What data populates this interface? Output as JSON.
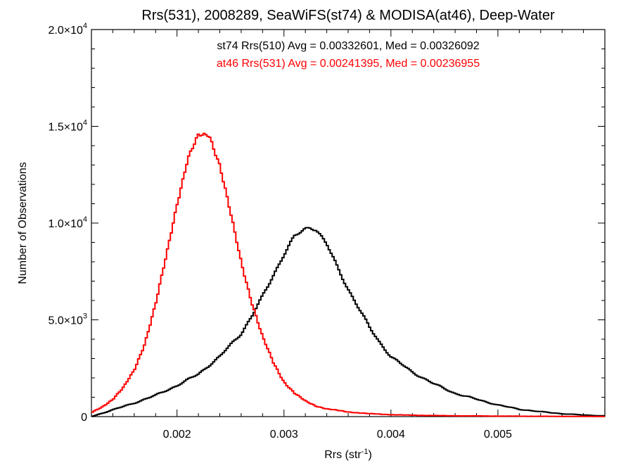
{
  "chart_data": {
    "type": "line",
    "title": "Rrs(531), 2008289, SeaWiFS(st74) & MODISA(at46), Deep-Water",
    "xlabel": "Rrs (str",
    "xlabel_sup": "-1",
    "xlabel_close": ")",
    "ylabel": "Number of Observations",
    "xlim": [
      0.0012,
      0.006
    ],
    "ylim": [
      0,
      20000
    ],
    "x_ticks": [
      {
        "value": 0.002,
        "label": "0.002"
      },
      {
        "value": 0.003,
        "label": "0.003"
      },
      {
        "value": 0.004,
        "label": "0.004"
      },
      {
        "value": 0.005,
        "label": "0.005"
      }
    ],
    "y_ticks": [
      {
        "value": 0,
        "label": "0",
        "sup": ""
      },
      {
        "value": 5000,
        "label": "5.0×10",
        "sup": "3"
      },
      {
        "value": 10000,
        "label": "1.0×10",
        "sup": "4"
      },
      {
        "value": 15000,
        "label": "1.5×10",
        "sup": "4"
      },
      {
        "value": 20000,
        "label": "2.0×10",
        "sup": "4"
      }
    ],
    "grid": false,
    "series": [
      {
        "name": "st74 Rrs(510) Avg = 0.00332601, Med = 0.00326092",
        "color": "#000000",
        "x": [
          0.0012,
          0.0014,
          0.0016,
          0.0018,
          0.002,
          0.0022,
          0.0024,
          0.0026,
          0.0027,
          0.0028,
          0.0029,
          0.003,
          0.0031,
          0.0032,
          0.00325,
          0.0033,
          0.0034,
          0.0035,
          0.0036,
          0.0037,
          0.0038,
          0.0039,
          0.004,
          0.0042,
          0.0044,
          0.0046,
          0.0048,
          0.005,
          0.0052,
          0.0054,
          0.0056,
          0.0058,
          0.006
        ],
        "y": [
          0,
          350,
          700,
          1100,
          1600,
          2200,
          3100,
          4300,
          5200,
          6200,
          7300,
          8400,
          9300,
          9700,
          9800,
          9700,
          8900,
          7700,
          6600,
          5600,
          4600,
          3800,
          3100,
          2300,
          1700,
          1200,
          900,
          600,
          380,
          250,
          150,
          80,
          40
        ]
      },
      {
        "name": "at46 Rrs(531) Avg = 0.00241395, Med = 0.00236955",
        "color": "#ff0000",
        "x": [
          0.0012,
          0.0013,
          0.0014,
          0.0015,
          0.0016,
          0.0017,
          0.0018,
          0.0019,
          0.002,
          0.0021,
          0.0022,
          0.0023,
          0.00235,
          0.0024,
          0.0025,
          0.0026,
          0.0027,
          0.0028,
          0.0029,
          0.003,
          0.0031,
          0.0032,
          0.0033,
          0.0034,
          0.0036,
          0.0038,
          0.004,
          0.0042,
          0.0045,
          0.005,
          0.0055,
          0.006
        ],
        "y": [
          200,
          500,
          900,
          1500,
          2400,
          3800,
          5800,
          8300,
          11000,
          13300,
          14500,
          14600,
          13800,
          13000,
          10500,
          8000,
          5900,
          4100,
          2800,
          1800,
          1200,
          800,
          550,
          400,
          240,
          150,
          100,
          70,
          45,
          25,
          12,
          5
        ]
      }
    ]
  }
}
